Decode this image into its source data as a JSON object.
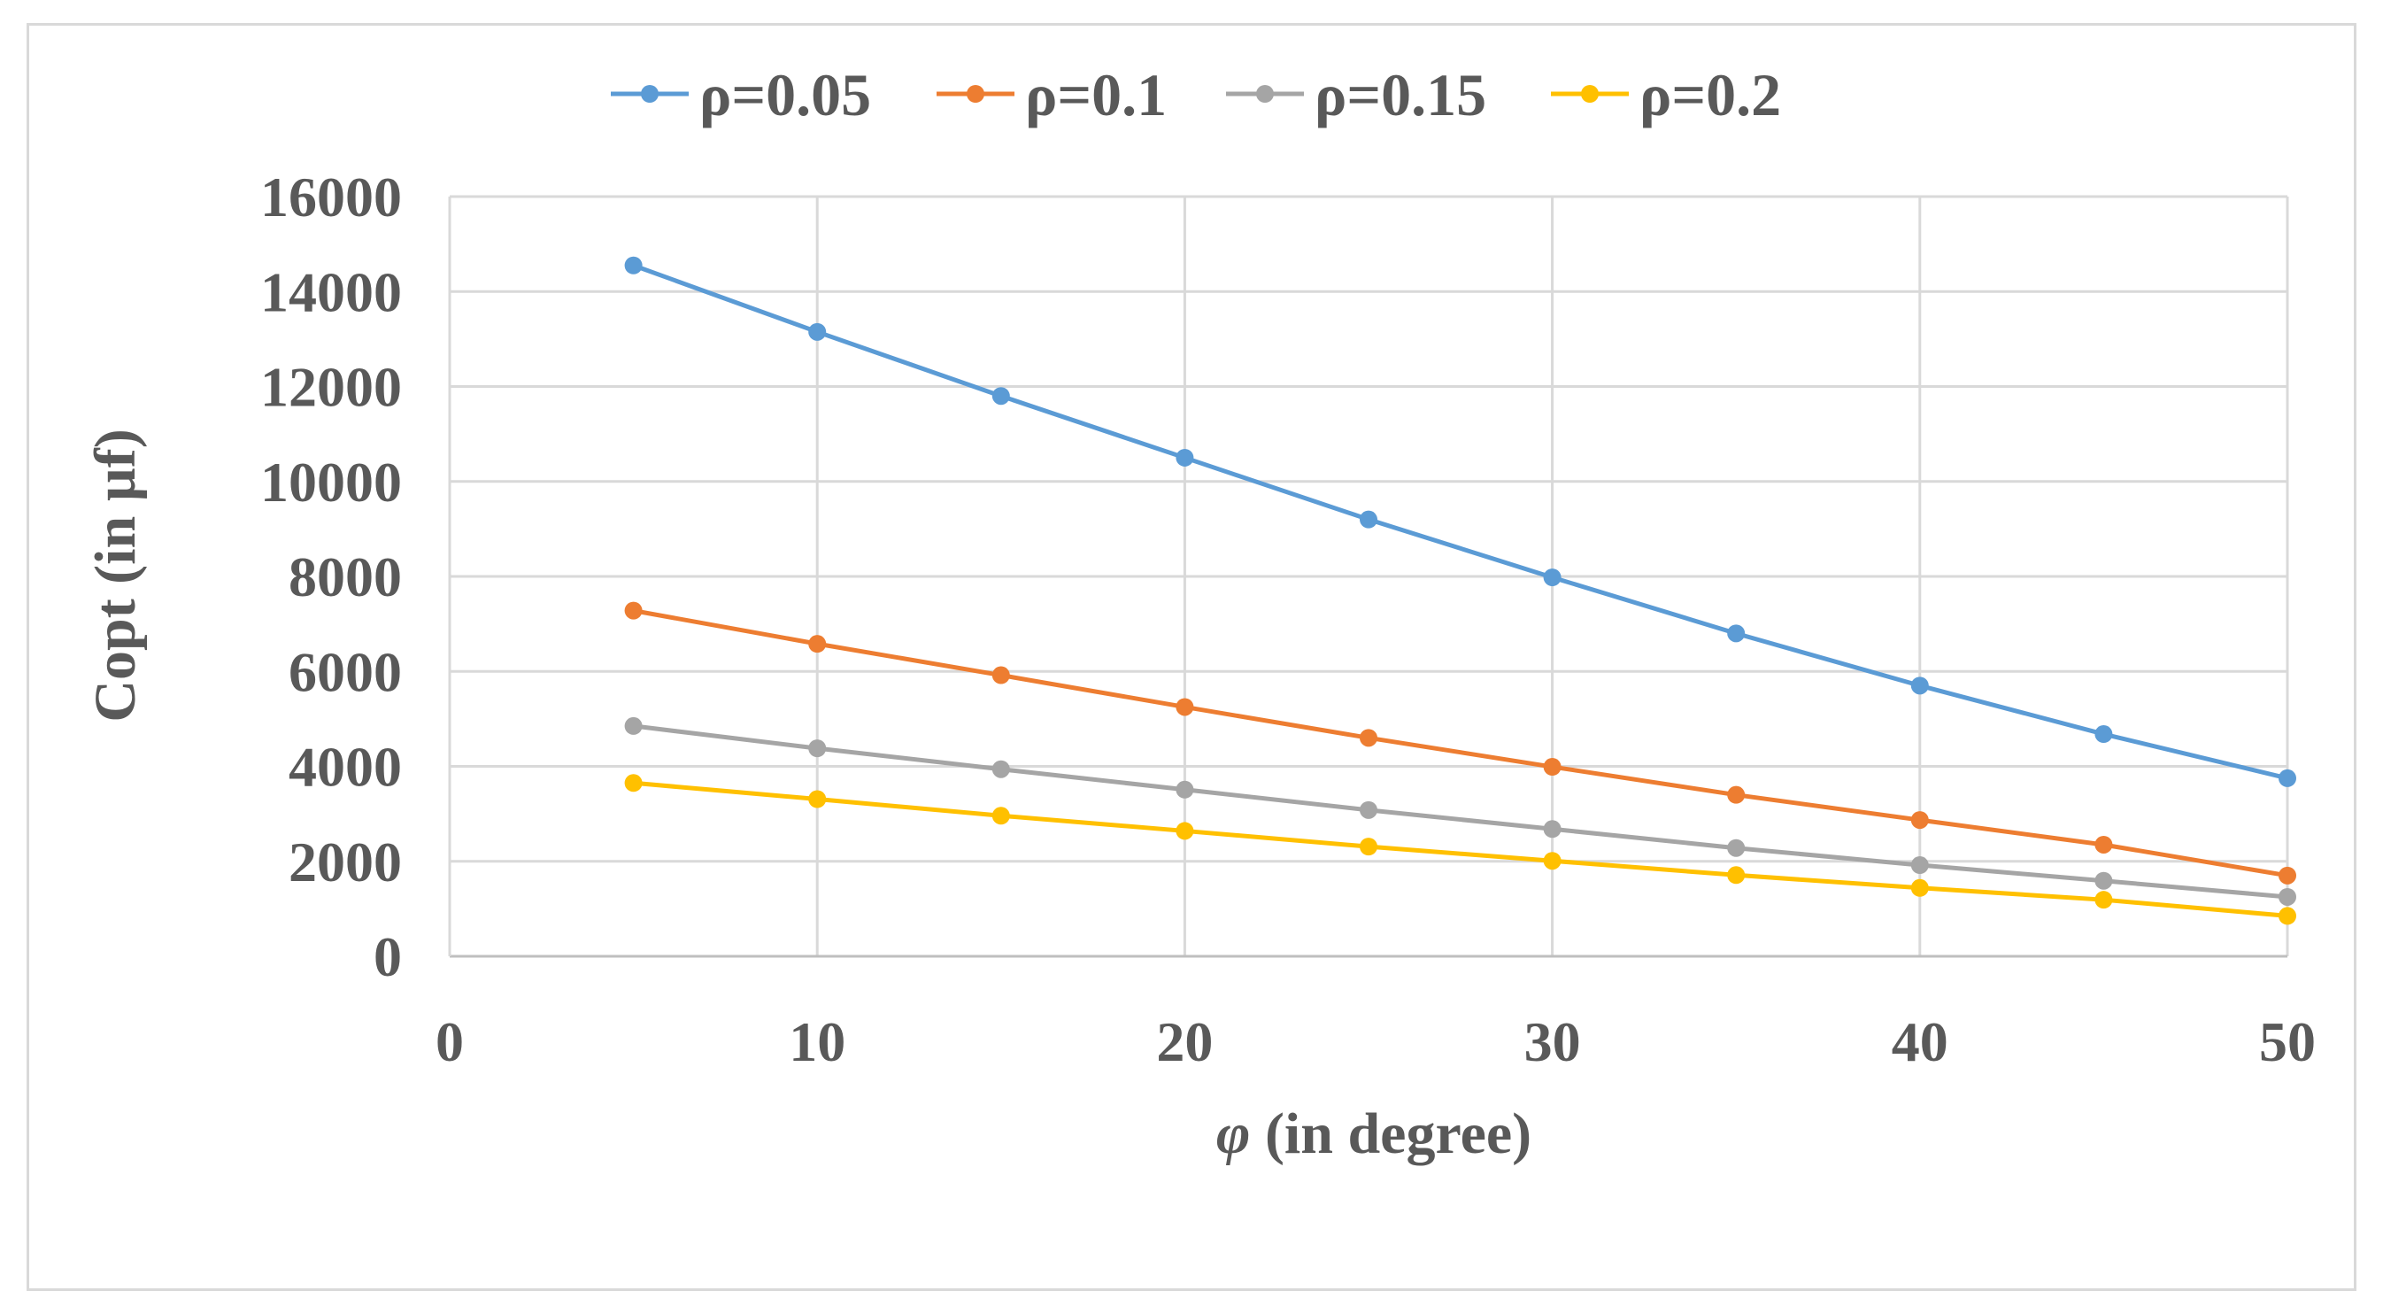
{
  "chart_data": {
    "type": "line",
    "title": "",
    "xlabel_symbol": "φ",
    "xlabel_rest": " (in degree)",
    "ylabel": "Copt (in µf)",
    "xlim": [
      0,
      50
    ],
    "ylim": [
      0,
      16000
    ],
    "x_ticks": [
      0,
      10,
      20,
      30,
      40,
      50
    ],
    "y_ticks": [
      0,
      2000,
      4000,
      6000,
      8000,
      10000,
      12000,
      14000,
      16000
    ],
    "grid": true,
    "legend_position": "top",
    "x": [
      5,
      10,
      15,
      20,
      25,
      30,
      35,
      40,
      45,
      50
    ],
    "series": [
      {
        "name": "ρ=0.05",
        "color": "#5b9bd5",
        "values": [
          14550,
          13150,
          11800,
          10500,
          9200,
          7980,
          6800,
          5700,
          4680,
          3750
        ]
      },
      {
        "name": "ρ=0.1",
        "color": "#ed7d31",
        "values": [
          7280,
          6580,
          5920,
          5250,
          4600,
          3990,
          3400,
          2870,
          2350,
          1700
        ]
      },
      {
        "name": "ρ=0.15",
        "color": "#a5a5a5",
        "values": [
          4850,
          4380,
          3940,
          3510,
          3080,
          2680,
          2280,
          1920,
          1590,
          1250
        ]
      },
      {
        "name": "ρ=0.2",
        "color": "#ffc000",
        "values": [
          3650,
          3310,
          2960,
          2640,
          2310,
          2010,
          1710,
          1440,
          1190,
          850
        ]
      }
    ]
  }
}
